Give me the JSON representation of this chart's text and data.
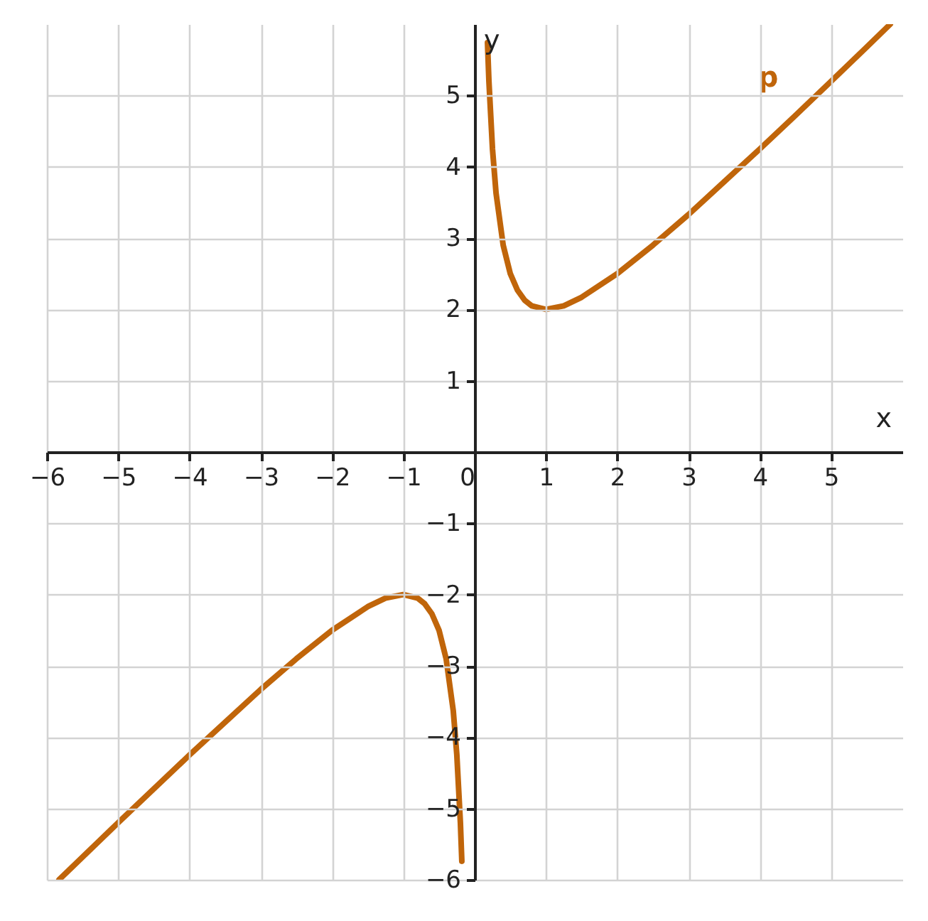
{
  "chart_data": {
    "type": "line",
    "xlabel": "x",
    "ylabel": "y",
    "xlim": [
      -6,
      6
    ],
    "ylim": [
      -6,
      6
    ],
    "xticks": [
      {
        "value": -6,
        "label": "−6"
      },
      {
        "value": -5,
        "label": "−5"
      },
      {
        "value": -4,
        "label": "−4"
      },
      {
        "value": -3,
        "label": "−3"
      },
      {
        "value": -2,
        "label": "−2"
      },
      {
        "value": -1,
        "label": "−1"
      },
      0,
      1,
      2,
      3,
      4,
      5
    ],
    "yticks": [
      {
        "value": -6,
        "label": "−6"
      },
      {
        "value": -5,
        "label": "−5"
      },
      {
        "value": -4,
        "label": "−4"
      },
      {
        "value": -3,
        "label": "−3"
      },
      {
        "value": -2,
        "label": "−2"
      },
      {
        "value": -1,
        "label": "−1"
      },
      1,
      2,
      3,
      4,
      5
    ],
    "grid": true,
    "marker": "none",
    "line_style": "solid",
    "series": [
      {
        "name": "p",
        "color": "#c0650a",
        "x": [
          -5.83,
          -5,
          -4,
          -3,
          -2.5,
          -2,
          -1.5,
          -1.25,
          -1,
          -0.8,
          -0.7,
          -0.6,
          -0.5,
          -0.4,
          -0.3,
          -0.25,
          -0.2,
          -0.18,
          0,
          0.18,
          0.2,
          0.25,
          0.3,
          0.4,
          0.5,
          0.6,
          0.7,
          0.8,
          1,
          1.25,
          1.5,
          2,
          2.5,
          3,
          3.5,
          4,
          4.5,
          5,
          5.5,
          5.83
        ],
        "values": [
          -6.0,
          -5.2,
          -4.25,
          -3.33,
          -2.9,
          -2.5,
          -2.17,
          -2.05,
          -2,
          -2.05,
          -2.13,
          -2.27,
          -2.5,
          -2.9,
          -3.63,
          -4.25,
          -5.2,
          -5.74,
          null,
          5.74,
          5.2,
          4.25,
          3.63,
          2.9,
          2.5,
          2.27,
          2.13,
          2.05,
          2,
          2.05,
          2.17,
          2.5,
          2.9,
          3.33,
          3.79,
          4.25,
          4.72,
          5.2,
          5.68,
          6.0
        ]
      }
    ]
  }
}
